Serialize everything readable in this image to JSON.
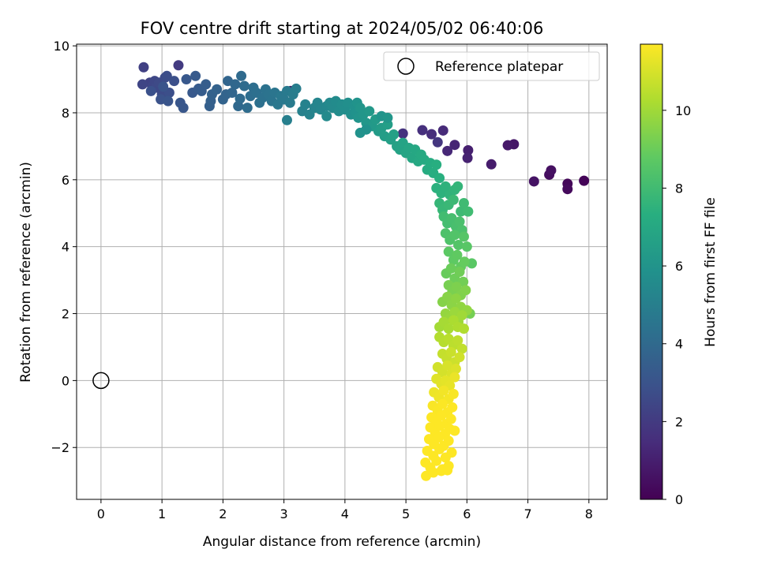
{
  "chart_data": {
    "type": "scatter",
    "title": "FOV centre drift starting at 2024/05/02 06:40:06",
    "xlabel": "Angular distance from reference (arcmin)",
    "ylabel": "Rotation from reference (arcmin)",
    "xlim": [
      -0.4,
      8.3
    ],
    "ylim": [
      -3.55,
      10.05
    ],
    "xticks": [
      0,
      1,
      2,
      3,
      4,
      5,
      6,
      7,
      8
    ],
    "yticks": [
      -2,
      0,
      2,
      4,
      6,
      8,
      10
    ],
    "xtick_labels": [
      "0",
      "1",
      "2",
      "3",
      "4",
      "5",
      "6",
      "7",
      "8"
    ],
    "ytick_labels": [
      "−2",
      "0",
      "2",
      "4",
      "6",
      "8",
      "10"
    ],
    "grid": true,
    "colormap": "viridis",
    "legend": {
      "position": "top-right",
      "entries": [
        "Reference platepar"
      ]
    },
    "reference_point": {
      "x": 0,
      "y": 0,
      "label": "Reference platepar"
    },
    "colorbar": {
      "label": "Hours from first FF file",
      "range": [
        0,
        11.7
      ],
      "ticks": [
        0,
        2,
        4,
        6,
        8,
        10
      ],
      "tick_labels": [
        "0",
        "2",
        "4",
        "6",
        "8",
        "10"
      ]
    },
    "series": [
      {
        "x": [
          7.92,
          7.65,
          7.65,
          7.35,
          7.38,
          7.1,
          6.77,
          6.67,
          6.4,
          6.02,
          6.01,
          5.8,
          5.68,
          5.61,
          5.42,
          5.27,
          4.95,
          3.11,
          5.52
        ],
        "y": [
          5.97,
          5.88,
          5.72,
          6.15,
          6.28,
          5.95,
          7.06,
          7.03,
          6.46,
          6.88,
          6.65,
          7.04,
          6.86,
          7.47,
          7.36,
          7.48,
          7.38,
          8.65,
          7.12
        ],
        "c": [
          0.1,
          0.2,
          0.3,
          0.4,
          0.5,
          0.6,
          0.7,
          0.8,
          0.9,
          1.0,
          1.1,
          1.2,
          1.3,
          1.4,
          1.5,
          1.6,
          1.7,
          1.0,
          1.8
        ]
      },
      {
        "x": [
          1.27,
          0.7,
          0.8,
          0.68,
          0.85,
          0.88,
          0.9,
          0.95,
          1.0,
          1.05,
          1.08,
          1.12,
          1.2,
          0.82,
          0.98,
          1.02,
          1.1,
          1.3,
          1.35,
          1.4,
          1.5,
          1.55,
          1.6,
          1.65,
          1.72,
          1.78,
          1.8,
          1.82,
          1.9,
          2.0,
          2.05,
          2.08,
          2.15,
          2.2,
          2.25,
          2.3,
          2.35,
          2.4,
          2.45,
          2.5,
          2.55,
          2.6,
          2.65,
          2.7,
          2.75,
          2.8,
          2.85,
          2.9,
          2.95,
          3.0,
          3.05,
          3.1,
          3.15,
          3.2,
          3.05,
          2.28
        ],
        "y": [
          9.42,
          9.36,
          8.9,
          8.85,
          8.82,
          8.95,
          8.75,
          8.9,
          8.55,
          9.05,
          9.1,
          8.6,
          8.95,
          8.65,
          8.4,
          8.78,
          8.35,
          8.3,
          8.15,
          9.0,
          8.6,
          9.1,
          8.72,
          8.65,
          8.85,
          8.2,
          8.35,
          8.55,
          8.7,
          8.4,
          8.55,
          8.95,
          8.6,
          8.85,
          8.2,
          9.1,
          8.8,
          8.15,
          8.5,
          8.75,
          8.6,
          8.3,
          8.45,
          8.7,
          8.55,
          8.35,
          8.6,
          8.25,
          8.5,
          8.4,
          8.65,
          8.3,
          8.55,
          8.72,
          7.78,
          8.42
        ],
        "c": [
          2.0,
          2.2,
          2.3,
          2.4,
          2.45,
          2.5,
          2.55,
          2.6,
          2.65,
          2.7,
          2.75,
          2.8,
          2.85,
          2.9,
          2.95,
          3.0,
          3.05,
          3.1,
          3.15,
          3.2,
          3.25,
          3.3,
          3.35,
          3.4,
          3.45,
          3.5,
          3.55,
          3.6,
          3.65,
          3.7,
          3.75,
          3.8,
          3.85,
          3.9,
          3.95,
          4.0,
          4.05,
          4.1,
          4.15,
          4.2,
          4.25,
          4.3,
          4.35,
          4.4,
          4.45,
          4.5,
          4.55,
          4.6,
          4.65,
          4.7,
          4.75,
          4.8,
          4.85,
          4.9,
          5.0,
          4.0
        ]
      },
      {
        "x": [
          3.3,
          3.35,
          3.42,
          3.5,
          3.55,
          3.6,
          3.7,
          3.75,
          3.8,
          3.85,
          3.9,
          3.95,
          4.0,
          4.05,
          4.1,
          4.15,
          4.18,
          4.2,
          4.22,
          4.25,
          4.3,
          4.35,
          4.4,
          4.45,
          4.5,
          4.55,
          4.6,
          4.65,
          4.7,
          4.75,
          4.8,
          4.85,
          4.9,
          4.95,
          5.0,
          5.05,
          5.1,
          5.15,
          5.2,
          5.25,
          5.3,
          5.35,
          5.4,
          5.45,
          5.5,
          5.55,
          4.6,
          4.7,
          4.35,
          4.25,
          3.7
        ],
        "y": [
          8.05,
          8.25,
          7.95,
          8.15,
          8.3,
          8.1,
          8.2,
          8.3,
          8.15,
          8.35,
          8.05,
          8.25,
          8.1,
          8.3,
          7.95,
          8.2,
          8.0,
          8.3,
          7.85,
          8.15,
          7.95,
          7.7,
          8.05,
          7.6,
          7.8,
          7.45,
          7.55,
          7.3,
          7.65,
          7.2,
          7.35,
          7.0,
          6.9,
          7.1,
          6.8,
          6.95,
          6.65,
          6.9,
          6.55,
          6.75,
          6.6,
          6.3,
          6.5,
          6.2,
          6.45,
          6.05,
          7.9,
          7.85,
          7.5,
          7.4,
          7.9
        ],
        "c": [
          5.1,
          5.15,
          5.2,
          5.25,
          5.3,
          5.35,
          5.4,
          5.45,
          5.5,
          5.55,
          5.6,
          5.65,
          5.7,
          5.75,
          5.8,
          5.85,
          5.9,
          5.95,
          6.0,
          6.05,
          6.1,
          6.15,
          6.2,
          6.25,
          6.3,
          6.35,
          6.4,
          6.45,
          6.5,
          6.55,
          6.6,
          6.65,
          6.7,
          6.75,
          6.8,
          6.85,
          6.9,
          6.95,
          7.0,
          7.05,
          7.1,
          7.15,
          7.2,
          7.25,
          7.3,
          7.35,
          6.0,
          6.1,
          5.9,
          5.9,
          5.5
        ]
      },
      {
        "x": [
          5.5,
          5.58,
          5.65,
          5.72,
          5.8,
          5.85,
          5.55,
          5.6,
          5.7,
          5.78,
          5.9,
          5.95,
          6.02,
          5.62,
          5.68,
          5.75,
          5.82,
          5.88,
          5.92,
          5.65,
          5.72,
          5.8,
          5.86,
          5.95,
          6.0,
          6.08,
          5.7,
          5.78,
          5.84,
          5.9,
          5.96,
          5.66,
          5.74,
          5.8,
          5.88,
          5.94,
          6.05,
          5.7,
          5.76,
          5.83,
          5.9,
          5.98,
          5.6,
          5.68,
          5.75,
          5.82,
          5.9,
          6.0,
          5.65,
          5.72,
          5.8,
          5.86,
          5.92,
          5.55,
          5.62,
          5.7,
          5.78,
          5.85,
          5.95
        ],
        "y": [
          5.75,
          5.6,
          5.8,
          5.55,
          5.7,
          5.8,
          5.3,
          5.1,
          5.25,
          5.4,
          5.05,
          5.3,
          5.05,
          4.9,
          4.7,
          4.85,
          4.6,
          4.75,
          4.5,
          4.4,
          4.2,
          4.35,
          4.05,
          4.3,
          4.0,
          3.5,
          3.85,
          3.6,
          3.75,
          3.4,
          3.55,
          3.2,
          3.35,
          3.05,
          3.25,
          2.95,
          2.0,
          2.85,
          2.65,
          2.8,
          2.55,
          2.7,
          2.35,
          2.5,
          2.25,
          2.45,
          2.2,
          2.1,
          2.0,
          1.85,
          2.05,
          1.75,
          1.95,
          1.6,
          1.75,
          1.55,
          1.8,
          1.6,
          1.55
        ],
        "c": [
          7.4,
          7.45,
          7.5,
          7.55,
          7.6,
          7.65,
          7.7,
          7.75,
          7.8,
          7.85,
          7.9,
          7.95,
          8.0,
          8.05,
          8.1,
          8.15,
          8.2,
          8.25,
          8.3,
          8.35,
          8.4,
          8.45,
          8.5,
          8.55,
          8.6,
          8.65,
          8.7,
          8.75,
          8.8,
          8.85,
          8.9,
          8.95,
          9.0,
          9.05,
          9.1,
          9.15,
          9.2,
          9.25,
          9.3,
          9.35,
          9.4,
          9.45,
          9.5,
          9.55,
          9.6,
          9.65,
          9.7,
          9.75,
          9.8,
          9.85,
          9.9,
          9.95,
          10.0,
          10.05,
          10.1,
          10.15,
          10.2,
          10.25,
          10.3
        ]
      },
      {
        "x": [
          5.55,
          5.62,
          5.7,
          5.78,
          5.85,
          5.92,
          5.6,
          5.67,
          5.74,
          5.8,
          5.88,
          5.52,
          5.6,
          5.68,
          5.75,
          5.82,
          5.5,
          5.58,
          5.65,
          5.72,
          5.8,
          5.46,
          5.54,
          5.62,
          5.7,
          5.78,
          5.44,
          5.52,
          5.6,
          5.68,
          5.76,
          5.42,
          5.5,
          5.58,
          5.66,
          5.74,
          5.4,
          5.48,
          5.56,
          5.64,
          5.72,
          5.8,
          5.38,
          5.46,
          5.54,
          5.62,
          5.7,
          5.35,
          5.45,
          5.55,
          5.65,
          5.75,
          5.32,
          5.4,
          5.5,
          5.6,
          5.7,
          5.33,
          5.45,
          5.58,
          5.68
        ],
        "y": [
          1.3,
          1.15,
          1.25,
          1.05,
          1.2,
          0.95,
          0.8,
          0.65,
          0.85,
          0.55,
          0.7,
          0.4,
          0.25,
          0.45,
          0.2,
          0.35,
          0.05,
          -0.1,
          0.0,
          -0.15,
          0.1,
          -0.35,
          -0.5,
          -0.3,
          -0.55,
          -0.4,
          -0.75,
          -0.9,
          -0.7,
          -0.95,
          -0.8,
          -1.1,
          -1.25,
          -1.05,
          -1.3,
          -1.15,
          -1.4,
          -1.55,
          -1.35,
          -1.6,
          -1.45,
          -1.5,
          -1.75,
          -1.9,
          -1.7,
          -1.95,
          -1.8,
          -2.1,
          -2.25,
          -2.05,
          -2.3,
          -2.15,
          -2.45,
          -2.6,
          -2.4,
          -2.65,
          -2.55,
          -2.85,
          -2.75,
          -2.7,
          -2.68
        ],
        "c": [
          10.35,
          10.4,
          10.45,
          10.5,
          10.55,
          10.6,
          10.65,
          10.7,
          10.75,
          10.8,
          10.85,
          10.9,
          10.95,
          11.0,
          11.05,
          11.1,
          11.15,
          11.2,
          11.25,
          11.3,
          11.35,
          11.4,
          11.45,
          11.5,
          11.55,
          11.6,
          11.62,
          11.64,
          11.66,
          11.68,
          11.7,
          11.7,
          11.7,
          11.7,
          11.7,
          11.7,
          11.7,
          11.7,
          11.7,
          11.7,
          11.7,
          11.7,
          11.7,
          11.7,
          11.7,
          11.7,
          11.7,
          11.7,
          11.7,
          11.7,
          11.7,
          11.7,
          11.7,
          11.7,
          11.7,
          11.7,
          11.7,
          11.7,
          11.7,
          11.7,
          11.7
        ]
      }
    ]
  }
}
